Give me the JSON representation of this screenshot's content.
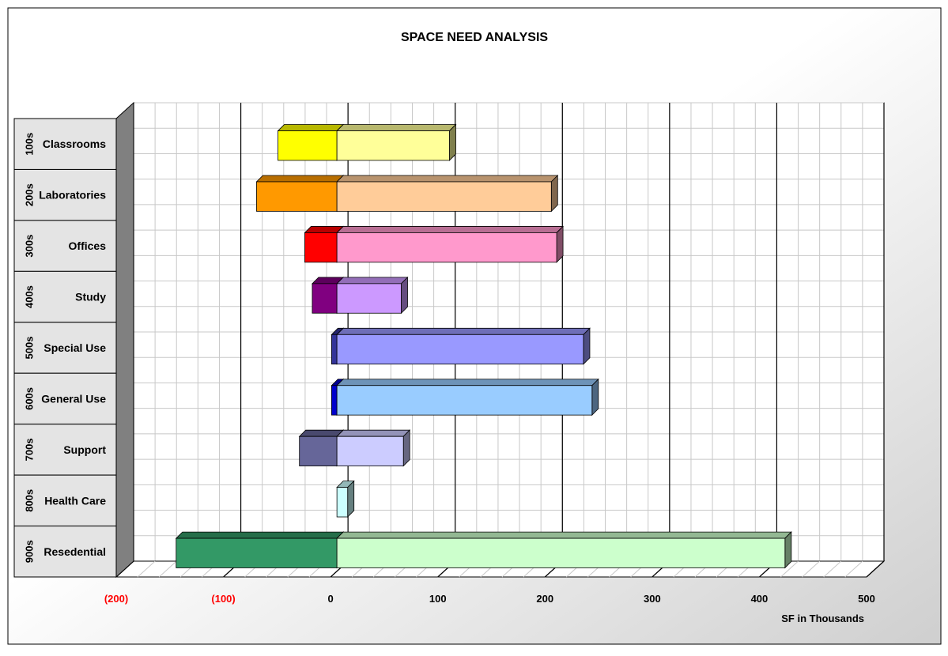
{
  "chart_data": {
    "type": "bar",
    "orientation": "horizontal",
    "stacked": true,
    "three_d": true,
    "title": "SPACE NEED ANALYSIS",
    "xlabel": "SF in Thousands",
    "ylabel": "",
    "xlim": [
      -200,
      500
    ],
    "x_ticks": [
      {
        "value": -200,
        "label": "(200)",
        "color": "#ff0000"
      },
      {
        "value": -100,
        "label": "(100)",
        "color": "#ff0000"
      },
      {
        "value": 0,
        "label": "0",
        "color": "#000000"
      },
      {
        "value": 100,
        "label": "100",
        "color": "#000000"
      },
      {
        "value": 200,
        "label": "200",
        "color": "#000000"
      },
      {
        "value": 300,
        "label": "300",
        "color": "#000000"
      },
      {
        "value": 400,
        "label": "400",
        "color": "#000000"
      },
      {
        "value": 500,
        "label": "500",
        "color": "#000000"
      }
    ],
    "grid": true,
    "legend": "none",
    "categories": [
      {
        "code": "100s",
        "name": "Classrooms",
        "negative": -55,
        "positive": 105,
        "neg_color": "#ffff00",
        "pos_color": "#ffff99"
      },
      {
        "code": "200s",
        "name": "Laboratories",
        "negative": -75,
        "positive": 200,
        "neg_color": "#ff9900",
        "pos_color": "#ffcc99"
      },
      {
        "code": "300s",
        "name": "Offices",
        "negative": -30,
        "positive": 205,
        "neg_color": "#ff0000",
        "pos_color": "#ff99cc"
      },
      {
        "code": "400s",
        "name": "Study",
        "negative": -23,
        "positive": 60,
        "neg_color": "#800080",
        "pos_color": "#cc99ff"
      },
      {
        "code": "500s",
        "name": "Special Use",
        "negative": -5,
        "positive": 230,
        "neg_color": "#333399",
        "pos_color": "#9999ff"
      },
      {
        "code": "600s",
        "name": "General Use",
        "negative": -5,
        "positive": 238,
        "neg_color": "#0000cc",
        "pos_color": "#99ccff"
      },
      {
        "code": "700s",
        "name": "Support",
        "negative": -35,
        "positive": 62,
        "neg_color": "#666699",
        "pos_color": "#ccccff"
      },
      {
        "code": "800s",
        "name": "Health Care",
        "negative": 0,
        "positive": 10,
        "neg_color": "#ccffff",
        "pos_color": "#ccffff"
      },
      {
        "code": "900s",
        "name": "Resedential",
        "negative": -150,
        "positive": 418,
        "neg_color": "#339966",
        "pos_color": "#ccffcc"
      }
    ]
  }
}
